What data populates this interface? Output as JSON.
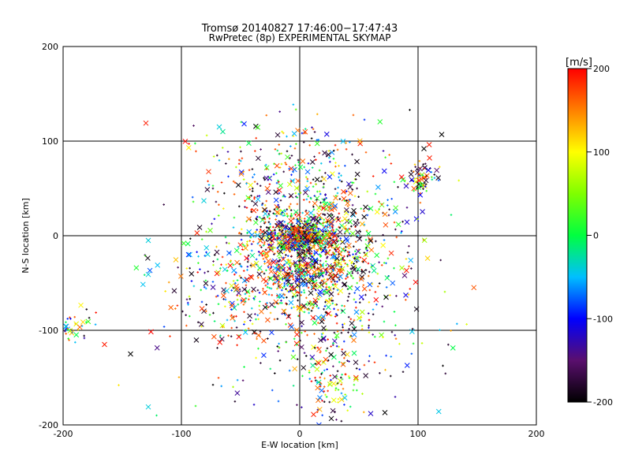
{
  "chart_data": {
    "type": "scatter",
    "title": "Tromsø 20140827 17:46:00−17:47:43",
    "subtitle": "RwPretec (8p) EXPERIMENTAL SKYMAP",
    "xlabel": "E-W location [km]",
    "ylabel": "N-S location [km]",
    "xlim": [
      -200,
      200
    ],
    "ylim": [
      -200,
      200
    ],
    "x_ticks": [
      -200,
      -100,
      0,
      100,
      200
    ],
    "y_ticks": [
      -200,
      -100,
      0,
      100,
      200
    ],
    "grid": true,
    "colorbar": {
      "label": "[m/s]",
      "range": [
        -200,
        200
      ],
      "ticks": [
        -200,
        -100,
        0,
        100,
        200
      ],
      "stops": [
        {
          "v": -200,
          "color": "#000000"
        },
        {
          "v": -150,
          "color": "#5a0f6e"
        },
        {
          "v": -100,
          "color": "#0000ff"
        },
        {
          "v": -50,
          "color": "#00bfff"
        },
        {
          "v": 0,
          "color": "#00ff40"
        },
        {
          "v": 50,
          "color": "#7fff00"
        },
        {
          "v": 100,
          "color": "#ffff00"
        },
        {
          "v": 150,
          "color": "#ff8000"
        },
        {
          "v": 200,
          "color": "#ff0000"
        }
      ]
    },
    "clusters": [
      {
        "x": 0,
        "y": 0,
        "sx": 14,
        "sy": 9,
        "n": 420
      },
      {
        "x": 10,
        "y": -30,
        "sx": 30,
        "sy": 25,
        "n": 600
      },
      {
        "x": 0,
        "y": -10,
        "sx": 45,
        "sy": 55,
        "n": 500
      },
      {
        "x": 20,
        "y": 20,
        "sx": 35,
        "sy": 30,
        "n": 260
      },
      {
        "x": -30,
        "y": -60,
        "sx": 40,
        "sy": 30,
        "n": 260
      },
      {
        "x": 30,
        "y": -150,
        "sx": 12,
        "sy": 25,
        "n": 110
      },
      {
        "x": 103,
        "y": 62,
        "sx": 7,
        "sy": 9,
        "n": 70
      },
      {
        "x": -190,
        "y": -95,
        "sx": 10,
        "sy": 10,
        "n": 40
      },
      {
        "x": -15,
        "y": 85,
        "sx": 40,
        "sy": 25,
        "n": 120
      },
      {
        "x": 20,
        "y": -110,
        "sx": 60,
        "sy": 30,
        "n": 150
      }
    ],
    "notable_points": [
      {
        "x": -130,
        "y": 119,
        "v": 190,
        "m": "x"
      },
      {
        "x": 120,
        "y": 107,
        "v": -200,
        "m": "x"
      },
      {
        "x": 93,
        "y": 133,
        "v": -200,
        "m": "+"
      },
      {
        "x": -128,
        "y": -5,
        "v": -40,
        "m": "x"
      },
      {
        "x": -128,
        "y": -41,
        "v": -40,
        "m": "x"
      },
      {
        "x": -143,
        "y": -125,
        "v": -200,
        "m": "x"
      },
      {
        "x": -128,
        "y": -181,
        "v": -40,
        "m": "x"
      },
      {
        "x": -121,
        "y": -190,
        "v": -10,
        "m": "+"
      },
      {
        "x": -153,
        "y": -158,
        "v": 110,
        "m": "+"
      },
      {
        "x": -98,
        "y": -8,
        "v": 20,
        "m": "x"
      },
      {
        "x": -88,
        "y": -180,
        "v": 20,
        "m": "+"
      },
      {
        "x": -81,
        "y": 37,
        "v": -40,
        "m": "x"
      },
      {
        "x": -68,
        "y": 115,
        "v": -40,
        "m": "x"
      },
      {
        "x": -65,
        "y": 110,
        "v": -20,
        "m": "x"
      },
      {
        "x": 105,
        "y": 92,
        "v": -200,
        "m": "x"
      },
      {
        "x": 73,
        "y": -65,
        "v": -200,
        "m": "x"
      },
      {
        "x": 72,
        "y": -187,
        "v": -200,
        "m": "x"
      },
      {
        "x": 60,
        "y": -188,
        "v": -120,
        "m": "x"
      },
      {
        "x": -165,
        "y": -115,
        "v": 190,
        "m": "x"
      },
      {
        "x": -70,
        "y": -40,
        "v": 190,
        "m": "x"
      },
      {
        "x": 128,
        "y": 22,
        "v": -10,
        "m": "+"
      }
    ]
  }
}
